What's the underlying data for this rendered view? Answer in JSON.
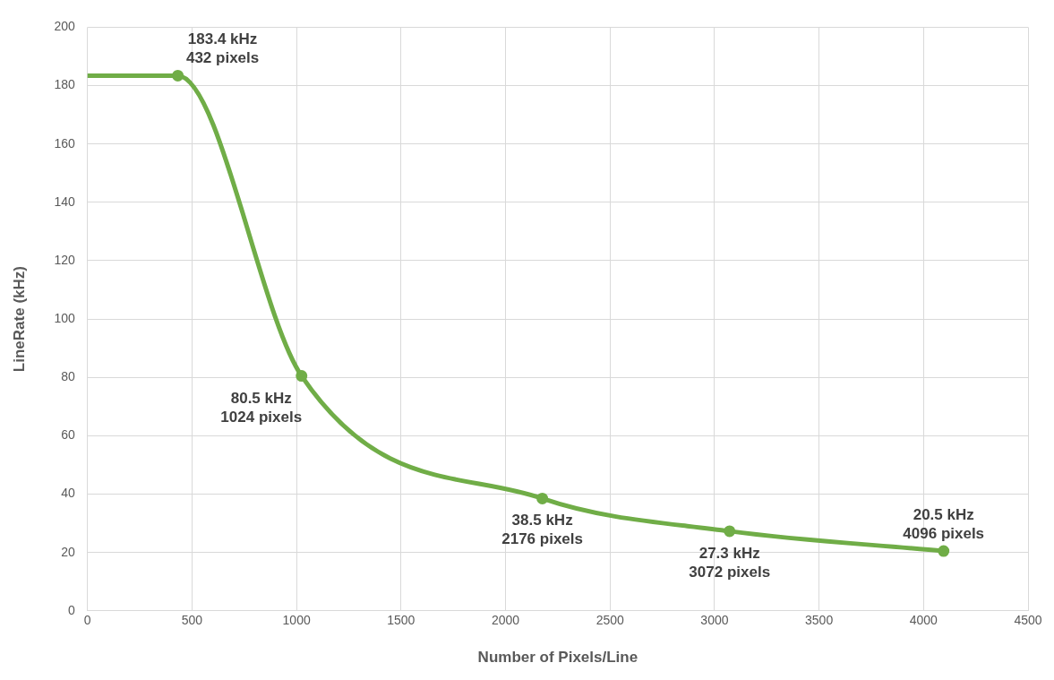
{
  "chart_data": {
    "type": "line",
    "xlabel": "Number of Pixels/Line",
    "ylabel": "LineRate (kHz)",
    "x": [
      0,
      432,
      1024,
      2176,
      3072,
      4096
    ],
    "series": [
      {
        "color": "#70ad47",
        "values": [
          183.4,
          183.4,
          80.5,
          38.5,
          27.3,
          20.5
        ],
        "value_labels": [
          null,
          "183.4 kHz\n432 pixels",
          "80.5 kHz\n1024 pixels",
          "38.5 kHz\n2176 pixels",
          "27.3 kHz\n3072 pixels",
          "20.5 kHz\n4096 pixels"
        ]
      }
    ],
    "xlim": [
      0,
      4500
    ],
    "xticks": [
      0,
      500,
      1000,
      1500,
      2000,
      2500,
      3000,
      3500,
      4000,
      4500
    ],
    "ylim": [
      0,
      200
    ],
    "yticks": [
      0,
      20,
      40,
      60,
      80,
      100,
      120,
      140,
      160,
      180,
      200
    ],
    "grid": true,
    "legend": false,
    "marker": "circle",
    "line_style": "solid"
  }
}
